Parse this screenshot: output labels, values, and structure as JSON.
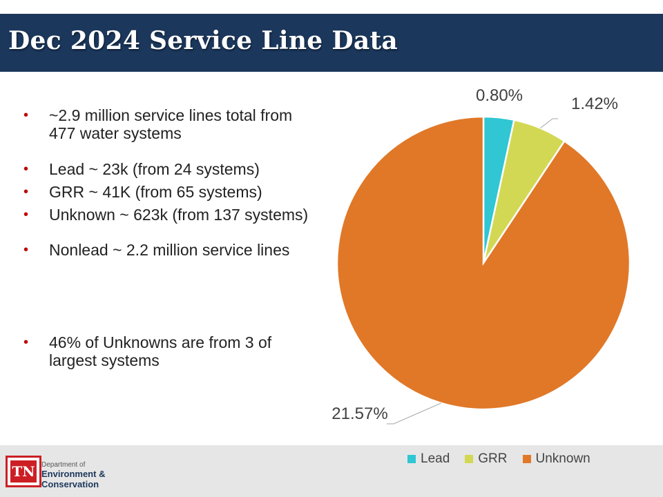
{
  "slide": {
    "title": "Dec 2024 Service Line Data",
    "bullets": [
      "~2.9 million service lines total from 477 water systems",
      "Lead  ~ 23k  (from 24 systems)",
      "GRR  ~ 41K  (from 65 systems)",
      "Unknown  ~ 623k (from 137 systems)",
      "Nonlead  ~ 2.2 million service lines",
      "46% of Unknowns are from 3 of largest systems"
    ],
    "bullet_marker": "•"
  },
  "footer": {
    "logo_text": "TN",
    "dept_line1": "Department of",
    "dept_line2": "Environment &",
    "dept_line3": "Conservation"
  },
  "chart_data": {
    "type": "pie",
    "labels": [
      "Lead",
      "GRR",
      "Unknown"
    ],
    "values": [
      0.8,
      1.42,
      21.57
    ],
    "data_labels": [
      "0.80%",
      "1.42%",
      "21.57%"
    ],
    "colors": [
      "#30c6d3",
      "#d2d853",
      "#e07828"
    ],
    "legend_position": "bottom"
  }
}
